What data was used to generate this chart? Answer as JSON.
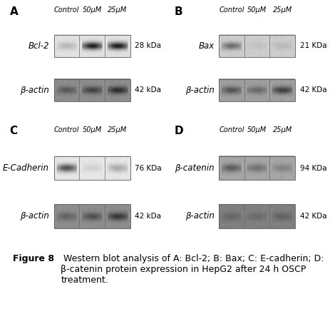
{
  "figure_label": "Figure 8",
  "caption_rest": " Western blot analysis of A: Bcl-2; B: Bax; C: E-cadherin; D: β-catenin protein expression in HepG2 after 24 h OSCP treatment.",
  "panels": {
    "A": {
      "label": "A",
      "col_labels": [
        "Control",
        "50μM",
        "25μM"
      ],
      "rows": [
        {
          "protein": "Bcl-2",
          "kda": "28 kDa",
          "band_vals": [
            0.8,
            0.1,
            0.08
          ],
          "bg": 0.88
        },
        {
          "protein": "β-actin",
          "kda": "42 kDa",
          "band_vals": [
            0.75,
            0.65,
            0.55
          ],
          "bg": 0.55
        }
      ]
    },
    "B": {
      "label": "B",
      "col_labels": [
        "Control",
        "50μM",
        "25μM"
      ],
      "rows": [
        {
          "protein": "Bax",
          "kda": "21 KDa",
          "band_vals": [
            0.55,
            0.95,
            0.9
          ],
          "bg": 0.8
        },
        {
          "protein": "β-actin",
          "kda": "42 KDa",
          "band_vals": [
            0.65,
            0.75,
            0.55
          ],
          "bg": 0.62
        }
      ]
    },
    "C": {
      "label": "C",
      "col_labels": [
        "Control",
        "50μM",
        "25μM"
      ],
      "rows": [
        {
          "protein": "E-Cadherin",
          "kda": "76 KDa",
          "band_vals": [
            0.3,
            0.9,
            0.72
          ],
          "bg": 0.9
        },
        {
          "protein": "β-actin",
          "kda": "42 kDa",
          "band_vals": [
            0.8,
            0.72,
            0.6
          ],
          "bg": 0.55
        }
      ]
    },
    "D": {
      "label": "D",
      "col_labels": [
        "Control",
        "50μM",
        "25μM"
      ],
      "rows": [
        {
          "protein": "β-catenin",
          "kda": "94 KDa",
          "band_vals": [
            0.65,
            0.75,
            0.82
          ],
          "bg": 0.65
        },
        {
          "protein": "β-actin",
          "kda": "42 KDa",
          "band_vals": [
            0.88,
            0.9,
            0.85
          ],
          "bg": 0.5
        }
      ]
    }
  },
  "bg_color": "#ffffff",
  "caption_fontsize": 9.0,
  "label_fontsize": 11,
  "protein_fontsize": 8.5,
  "col_fontsize": 7.0,
  "kda_fontsize": 7.5
}
